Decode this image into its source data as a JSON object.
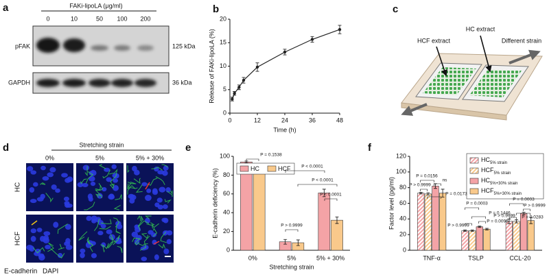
{
  "panels": {
    "a": {
      "label": "a",
      "title": "FAKi-lipoLA (μg/ml)",
      "lanes": [
        "0",
        "10",
        "50",
        "100",
        "200"
      ],
      "bands": [
        {
          "name": "pFAK",
          "size": "125 kDa"
        },
        {
          "name": "GAPDH",
          "size": "36 kDa"
        }
      ]
    },
    "c": {
      "label": "c",
      "labels": [
        "HCF extract",
        "HC extract",
        "Different strain"
      ]
    },
    "d": {
      "label": "d",
      "title": "Stretching strain",
      "columns": [
        "0%",
        "5%",
        "5% + 30%"
      ],
      "rows": [
        "HC",
        "HCF"
      ],
      "stains": [
        {
          "name": "E-cadherin",
          "color": "#1ea34a"
        },
        {
          "name": "DAPI",
          "color": "#2440d8"
        }
      ]
    }
  },
  "chart_data": [
    {
      "type": "line",
      "panel": "b",
      "x": [
        1,
        2,
        4,
        6,
        12,
        24,
        36,
        48
      ],
      "values": [
        3,
        4.2,
        5.5,
        7,
        9.8,
        13,
        15.7,
        17.8
      ],
      "errors": [
        0.4,
        0.4,
        0.5,
        0.6,
        0.9,
        0.6,
        0.6,
        0.9
      ],
      "color": "#222222",
      "xlim": [
        0,
        48
      ],
      "xticks": [
        0,
        12,
        24,
        36,
        48
      ],
      "ylim": [
        0,
        20
      ],
      "yticks": [
        0,
        5,
        10,
        15,
        20
      ],
      "xlabel": "Time (h)",
      "ylabel": "Release of FAKi-lipoLA (%)"
    },
    {
      "type": "bar",
      "panel": "e",
      "categories": [
        "0%",
        "5%",
        "5% + 30%"
      ],
      "series": [
        {
          "name": "HC",
          "color": "#f4a3a6",
          "values": [
            94,
            9,
            61
          ],
          "errors": [
            1,
            2.5,
            4
          ]
        },
        {
          "name": "HCF",
          "color": "#f9c98b",
          "values": [
            88,
            8,
            32
          ],
          "errors": [
            1.5,
            3,
            3.5
          ]
        }
      ],
      "ylim": [
        0,
        100
      ],
      "yticks": [
        0,
        20,
        40,
        60,
        80,
        100
      ],
      "xlabel": "Stretching strain",
      "ylabel": "E-cadherin deficiency (%)",
      "annotations": [
        "P = 0.1538",
        "P > 0.9999",
        "P < 0.0001",
        "P < 0.0001",
        "P < 0.0001"
      ]
    },
    {
      "type": "bar",
      "panel": "f",
      "categories": [
        "TNF-α",
        "TSLP",
        "CCL-20"
      ],
      "series": [
        {
          "name": "HC",
          "subscript": "5% strain",
          "color": "#f4a3a6",
          "pattern": "hatch",
          "values": [
            73,
            25,
            37
          ],
          "errors": [
            1,
            0.8,
            3
          ]
        },
        {
          "name": "HCF",
          "subscript": "5% strain",
          "color": "#f9c98b",
          "pattern": "hatch",
          "values": [
            72,
            25,
            37
          ],
          "errors": [
            1.5,
            0.8,
            2
          ]
        },
        {
          "name": "HC",
          "subscript": "5%+30% strain",
          "color": "#f4a3a6",
          "values": [
            82,
            30,
            47
          ],
          "errors": [
            3,
            0.8,
            1.5
          ]
        },
        {
          "name": "HCF",
          "subscript": "5%+30% strain",
          "color": "#f9c98b",
          "values": [
            73,
            27,
            38
          ],
          "errors": [
            5,
            1,
            4
          ]
        }
      ],
      "ylim": [
        0,
        120
      ],
      "yticks": [
        0,
        20,
        40,
        60,
        80,
        100,
        120
      ],
      "ylabel": "Factor level (pg/ml)",
      "annotations": [
        "P = 0.0156",
        "ns",
        "P > 0.9999",
        "P = 0.0173",
        "P = 0.0003",
        "P = 0.1446",
        "P > 0.9999",
        "P = 0.0095",
        "P = 0.0003",
        "P > 0.9999",
        "P > 0.9999",
        "P = 0.0283"
      ]
    }
  ]
}
